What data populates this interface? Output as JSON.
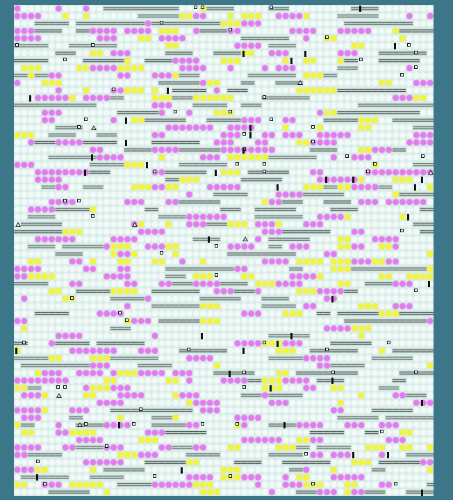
{
  "board": {
    "rows": 66,
    "cols": 61,
    "colors": {
      "background": "#3b7689",
      "board": "#d8ece8",
      "empty": "#f2faf8",
      "magenta": "#e47af0",
      "yellow": "#f4f43a",
      "dash": "#222222",
      "marker": "#111111"
    },
    "density": {
      "magenta": 0.15,
      "yellow": 0.12,
      "dash": 0.13
    },
    "marker_types": [
      "box-icon",
      "bar-icon",
      "triangle-icon"
    ]
  }
}
